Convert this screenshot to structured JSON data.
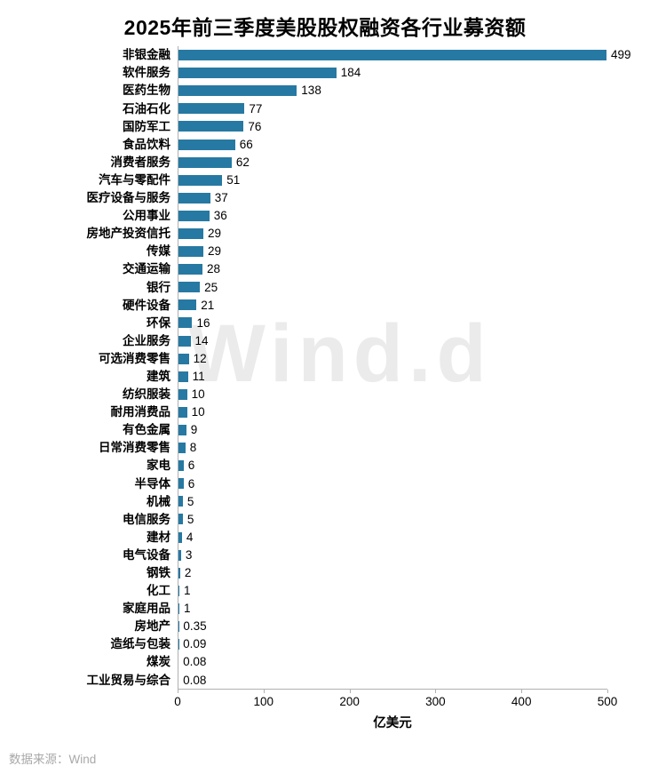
{
  "title": "2025年前三季度美股股权融资各行业募资额",
  "watermark": "Wind.d",
  "footer": {
    "source": "数据来源：Wind"
  },
  "chart_data": {
    "type": "bar",
    "orientation": "horizontal",
    "title": "2025年前三季度美股股权融资各行业募资额",
    "xlabel": "亿美元",
    "ylabel": "",
    "xlim": [
      0,
      500
    ],
    "xticks": [
      0,
      100,
      200,
      300,
      400,
      500
    ],
    "grid": false,
    "legend": false,
    "bar_color": "#2679a2",
    "axis_color": "#b0b0b0",
    "watermark_color": "#ebebeb",
    "categories": [
      "非银金融",
      "软件服务",
      "医药生物",
      "石油石化",
      "国防军工",
      "食品饮料",
      "消费者服务",
      "汽车与零配件",
      "医疗设备与服务",
      "公用事业",
      "房地产投资信托",
      "传媒",
      "交通运输",
      "银行",
      "硬件设备",
      "环保",
      "企业服务",
      "可选消费零售",
      "建筑",
      "纺织服装",
      "耐用消费品",
      "有色金属",
      "日常消费零售",
      "家电",
      "半导体",
      "机械",
      "电信服务",
      "建材",
      "电气设备",
      "钢铁",
      "化工",
      "家庭用品",
      "房地产",
      "造纸与包装",
      "煤炭",
      "工业贸易与综合"
    ],
    "values": [
      499,
      184,
      138,
      77,
      76,
      66,
      62,
      51,
      37,
      36,
      29,
      29,
      28,
      25,
      21,
      16,
      14,
      12,
      11,
      10,
      10,
      9,
      8,
      6,
      6,
      5,
      5,
      4,
      3,
      2,
      1,
      1,
      0.35,
      0.09,
      0.08,
      0.08
    ],
    "value_labels": [
      "499",
      "184",
      "138",
      "77",
      "76",
      "66",
      "62",
      "51",
      "37",
      "36",
      "29",
      "29",
      "28",
      "25",
      "21",
      "16",
      "14",
      "12",
      "11",
      "10",
      "10",
      "9",
      "8",
      "6",
      "6",
      "5",
      "5",
      "4",
      "3",
      "2",
      "1",
      "1",
      "0.35",
      "0.09",
      "0.08",
      "0.08"
    ]
  }
}
